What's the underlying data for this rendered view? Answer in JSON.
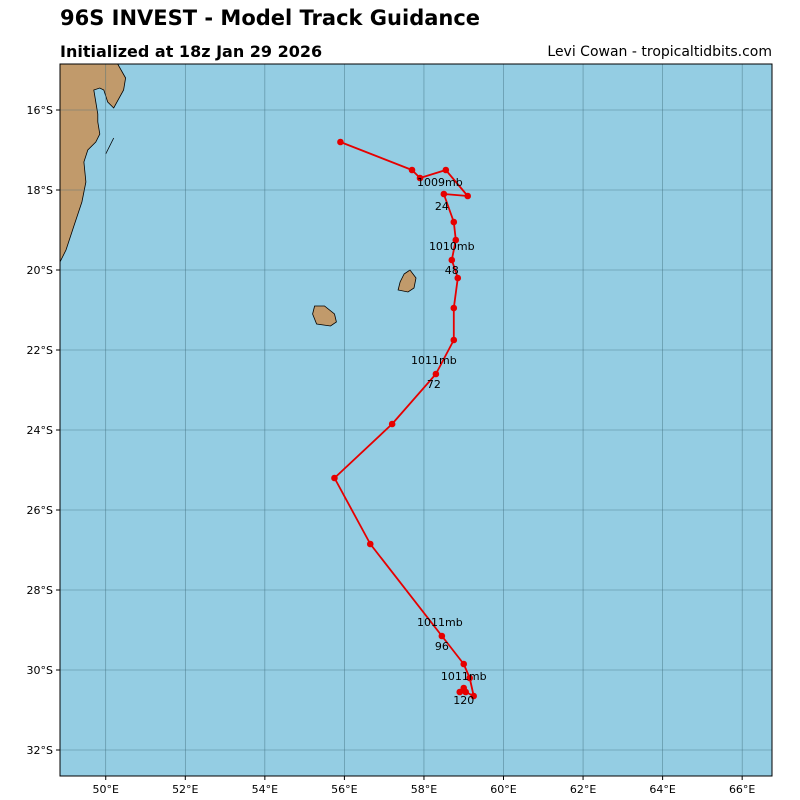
{
  "header": {
    "title": "96S INVEST - Model Track Guidance",
    "subtitle": "Initialized at 18z Jan 29 2026",
    "credit": "Levi Cowan - tropicaltidbits.com"
  },
  "colors": {
    "ocean": "#94cde3",
    "land": "#c19a6b",
    "track": "#e60000",
    "grid": "#3d6b7a"
  },
  "chart_data": {
    "type": "map-track",
    "xlim": [
      48.85,
      66.75
    ],
    "ylim": [
      -32.65,
      -14.85
    ],
    "x_ticks": [
      50,
      52,
      54,
      56,
      58,
      60,
      62,
      64,
      66
    ],
    "x_tick_labels": [
      "50°E",
      "52°E",
      "54°E",
      "56°E",
      "58°E",
      "60°E",
      "62°E",
      "64°E",
      "66°E"
    ],
    "y_ticks": [
      -16,
      -18,
      -20,
      -22,
      -24,
      -26,
      -28,
      -30,
      -32
    ],
    "y_tick_labels": [
      "16°S",
      "18°S",
      "20°S",
      "22°S",
      "24°S",
      "26°S",
      "28°S",
      "30°S",
      "32°S"
    ],
    "grid": true,
    "track": [
      [
        55.9,
        -16.8
      ],
      [
        57.7,
        -17.5
      ],
      [
        57.9,
        -17.7
      ],
      [
        58.55,
        -17.5
      ],
      [
        59.1,
        -18.15
      ],
      [
        58.5,
        -18.1
      ],
      [
        58.75,
        -18.8
      ],
      [
        58.8,
        -19.25
      ],
      [
        58.7,
        -19.75
      ],
      [
        58.85,
        -20.2
      ],
      [
        58.75,
        -20.95
      ],
      [
        58.75,
        -21.75
      ],
      [
        58.3,
        -22.6
      ],
      [
        57.2,
        -23.85
      ],
      [
        55.75,
        -25.2
      ],
      [
        56.65,
        -26.85
      ],
      [
        58.45,
        -29.15
      ],
      [
        59.0,
        -29.85
      ],
      [
        59.15,
        -30.2
      ],
      [
        59.25,
        -30.65
      ],
      [
        59.05,
        -30.55
      ],
      [
        58.9,
        -30.55
      ],
      [
        59.0,
        -30.45
      ]
    ],
    "labels": [
      {
        "text": "1009mb",
        "lon": 58.4,
        "lat": -17.8
      },
      {
        "text": "24",
        "lon": 58.45,
        "lat": -18.4
      },
      {
        "text": "1010mb",
        "lon": 58.7,
        "lat": -19.4
      },
      {
        "text": "48",
        "lon": 58.7,
        "lat": -20.0
      },
      {
        "text": "1011mb",
        "lon": 58.25,
        "lat": -22.25
      },
      {
        "text": "72",
        "lon": 58.25,
        "lat": -22.85
      },
      {
        "text": "1011mb",
        "lon": 58.4,
        "lat": -28.8
      },
      {
        "text": "96",
        "lon": 58.45,
        "lat": -29.4
      },
      {
        "text": "1011mb",
        "lon": 59.0,
        "lat": -30.15
      },
      {
        "text": "120",
        "lon": 59.0,
        "lat": -30.75
      }
    ],
    "land": [
      {
        "name": "madagascar",
        "points": [
          [
            48.85,
            -14.85
          ],
          [
            50.3,
            -14.85
          ],
          [
            50.5,
            -15.2
          ],
          [
            50.45,
            -15.5
          ],
          [
            50.2,
            -15.95
          ],
          [
            50.05,
            -15.8
          ],
          [
            49.95,
            -15.5
          ],
          [
            49.85,
            -15.45
          ],
          [
            49.7,
            -15.5
          ],
          [
            49.75,
            -15.8
          ],
          [
            49.8,
            -16.1
          ],
          [
            49.8,
            -16.3
          ],
          [
            49.85,
            -16.6
          ],
          [
            49.75,
            -16.8
          ],
          [
            49.55,
            -17.0
          ],
          [
            49.45,
            -17.3
          ],
          [
            49.5,
            -17.8
          ],
          [
            49.4,
            -18.3
          ],
          [
            49.2,
            -18.9
          ],
          [
            49.0,
            -19.5
          ],
          [
            48.85,
            -19.8
          ]
        ]
      },
      {
        "name": "sainte-marie",
        "points": [
          [
            50.0,
            -17.1
          ],
          [
            50.2,
            -16.7
          ],
          [
            50.05,
            -17.0
          ]
        ]
      },
      {
        "name": "mauritius",
        "points": [
          [
            57.5,
            -20.1
          ],
          [
            57.65,
            -20.0
          ],
          [
            57.8,
            -20.2
          ],
          [
            57.75,
            -20.45
          ],
          [
            57.6,
            -20.55
          ],
          [
            57.35,
            -20.5
          ],
          [
            57.4,
            -20.3
          ]
        ]
      },
      {
        "name": "reunion",
        "points": [
          [
            55.25,
            -20.9
          ],
          [
            55.5,
            -20.9
          ],
          [
            55.75,
            -21.1
          ],
          [
            55.8,
            -21.3
          ],
          [
            55.65,
            -21.4
          ],
          [
            55.3,
            -21.35
          ],
          [
            55.2,
            -21.1
          ]
        ]
      }
    ]
  }
}
